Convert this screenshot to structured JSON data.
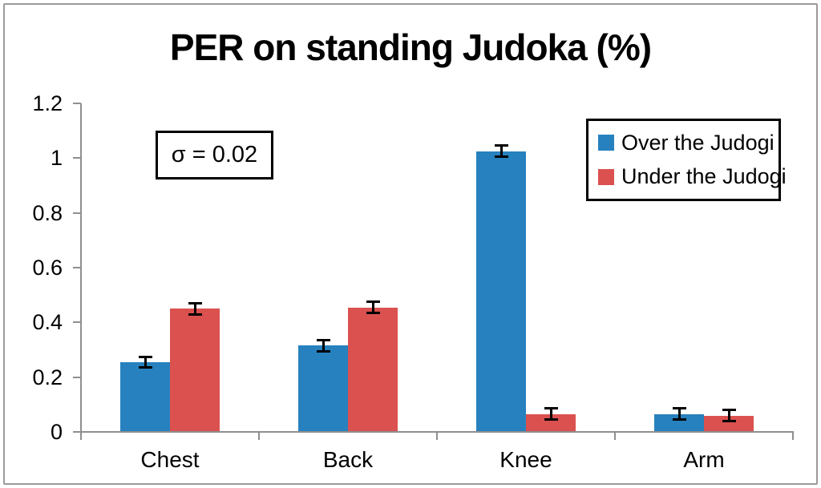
{
  "title": "PER on standing Judoka (%)",
  "colors": {
    "series_over": "#2781BE",
    "series_under": "#DB5150",
    "axis": "#8F8F8F",
    "frame_border": "#9A9A9A",
    "text": "#000000",
    "background": "#FFFFFF"
  },
  "chart_data": {
    "type": "bar",
    "title": "PER on standing Judoka (%)",
    "categories": [
      "Chest",
      "Back",
      "Knee",
      "Arm"
    ],
    "series": [
      {
        "name": "Over the Judogi",
        "color": "#2781BE",
        "values": [
          0.255,
          0.315,
          1.025,
          0.065
        ],
        "errors": [
          0.02,
          0.02,
          0.02,
          0.02
        ]
      },
      {
        "name": "Under the Judogi",
        "color": "#DB5150",
        "values": [
          0.45,
          0.455,
          0.065,
          0.06
        ],
        "errors": [
          0.02,
          0.02,
          0.02,
          0.02
        ]
      }
    ],
    "xlabel": "",
    "ylabel": "",
    "ylim": [
      0,
      1.2
    ],
    "ytick_labels": [
      "0",
      "0.2",
      "0.4",
      "0.6",
      "0.8",
      "1",
      "1.2"
    ],
    "annotation": "σ = 0.02",
    "legend_position": "top-right",
    "grid": false,
    "error_bars": true
  }
}
